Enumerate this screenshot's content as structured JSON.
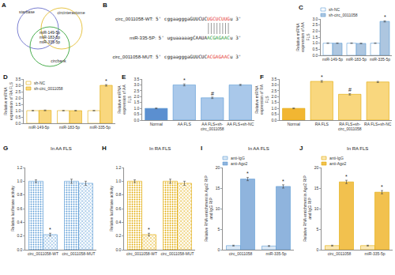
{
  "venn": {
    "panel": "A",
    "sets": [
      {
        "name": "starbase",
        "color": "#7b7fd1"
      },
      {
        "name": "circinteractome",
        "color": "#e8c547"
      },
      {
        "name": "circbank",
        "color": "#4caf50"
      }
    ],
    "intersection": [
      "miR-149-5p",
      "miR-183-5p",
      "miR-335-5p"
    ]
  },
  "alignment": {
    "panel": "B",
    "rows": [
      {
        "label": "circ_0011058-WT:",
        "segments": [
          {
            "text": "5' cggaagggaGUUCUC"
          },
          {
            "text": "UGCUCUUG",
            "color": "#e53935"
          },
          {
            "text": "u 3'"
          }
        ]
      },
      {
        "label": "miR-335-5P:",
        "segments": [
          {
            "text": "5' uguaaaaagCAAUA"
          },
          {
            "text": "ACGAGAAC",
            "color": "#2e9d3a"
          },
          {
            "text": "u 3'"
          }
        ]
      },
      {
        "label": "circ_0011058-MUT:",
        "segments": [
          {
            "text": "5' cggaagggaGUUCUC"
          },
          {
            "text": "ACGAGAAC",
            "color": "#e53935"
          },
          {
            "text": "u 3'"
          }
        ]
      }
    ],
    "pairing": [
      0,
      1
    ]
  },
  "chart_data": [
    {
      "panel": "C",
      "type": "bar",
      "y_label": "Relative miRNA expression of AA FLS",
      "categories": [
        "miR-149-5p",
        "miR-183-5p",
        "miR-335-5p"
      ],
      "color": "#5b9bd5",
      "series": [
        {
          "name": "sh-NC",
          "color": "#ffffff",
          "values": [
            1.0,
            1.0,
            1.0
          ],
          "errors": [
            0.02,
            0.02,
            0.02
          ]
        },
        {
          "name": "sh-circ_0011058",
          "color": "#adc6e0",
          "values": [
            1.0,
            0.98,
            2.8
          ],
          "errors": [
            0.02,
            0.02,
            0.05
          ]
        }
      ],
      "ylim": [
        0,
        3.0
      ],
      "yticks": [
        {
          "value": 0,
          "label": "0.0"
        },
        {
          "value": 0.5,
          "label": "0.5"
        },
        {
          "value": 1,
          "label": "1.0"
        },
        {
          "value": 1.5,
          "label": "1.5"
        },
        {
          "value": 2,
          "label": "2.0"
        },
        {
          "value": 2.5,
          "label": "2.5"
        },
        {
          "value": 3,
          "label": "3.0"
        }
      ],
      "legend": "top",
      "annotations": [
        {
          "category": 2,
          "series": 1,
          "text": "*"
        }
      ]
    },
    {
      "panel": "D",
      "type": "bar",
      "y_label": "Relative miRNA expression of RA FLS",
      "categories": [
        "miR-149-5p",
        "miR-183-5p",
        "miR-335-5p"
      ],
      "color": "#e0a800",
      "series": [
        {
          "name": "sh-NC",
          "color": "#ffffff",
          "values": [
            1.0,
            1.0,
            1.0
          ],
          "errors": [
            0.02,
            0.02,
            0.02
          ]
        },
        {
          "name": "sh-circ_0011058",
          "color": "#f9d77e",
          "values": [
            1.02,
            1.0,
            3.0
          ],
          "errors": [
            0.03,
            0.02,
            0.06
          ]
        }
      ],
      "ylim": [
        0,
        3.5
      ],
      "yticks": [
        {
          "value": 0,
          "label": "0.0"
        },
        {
          "value": 0.5,
          "label": "0.5"
        },
        {
          "value": 1,
          "label": "1.0"
        },
        {
          "value": 1.5,
          "label": "1.5"
        },
        {
          "value": 2,
          "label": "2.0"
        },
        {
          "value": 2.5,
          "label": "2.5"
        },
        {
          "value": 3,
          "label": "3.0"
        },
        {
          "value": 3.5,
          "label": "3.5"
        }
      ],
      "legend": "top left",
      "annotations": [
        {
          "category": 2,
          "series": 1,
          "text": "*"
        }
      ]
    },
    {
      "panel": "E",
      "type": "bar",
      "y_label": "Relative miRNA expression of AA FLS",
      "categories": [
        "Normal",
        "AA FLS",
        "AA FLS+sh-circ_0011058",
        "AA FLS+sh-NC"
      ],
      "color": "#5b9bd5",
      "values": [
        1.0,
        3.0,
        1.9,
        3.0
      ],
      "errors": [
        0.03,
        0.08,
        0.06,
        0.05
      ],
      "colors": [
        "#5b8fd0",
        "#a9c8ea",
        "#a9c8ea",
        "#a9c8ea"
      ],
      "ylim": [
        0,
        3.5
      ],
      "yticks": [
        {
          "value": 0,
          "label": "0.0"
        },
        {
          "value": 0.5,
          "label": "0.5"
        },
        {
          "value": 1,
          "label": "1.0"
        },
        {
          "value": 1.5,
          "label": "1.5"
        },
        {
          "value": 2,
          "label": "2.0"
        },
        {
          "value": 2.5,
          "label": "2.5"
        },
        {
          "value": 3,
          "label": "3.0"
        },
        {
          "value": 3.5,
          "label": "3.5"
        }
      ],
      "annotations": [
        {
          "category": 1,
          "text": "*"
        },
        {
          "category": 2,
          "text": "#"
        }
      ]
    },
    {
      "panel": "F",
      "type": "bar",
      "y_label": "Relative miRNA expression of RA FLS",
      "categories": [
        "Normal",
        "RA FLS",
        "RA FLS+sh-circ_0011058",
        "RA FLS+sh-NC"
      ],
      "color": "#e0a800",
      "values": [
        1.0,
        3.3,
        2.2,
        3.25
      ],
      "errors": [
        0.03,
        0.07,
        0.06,
        0.05
      ],
      "colors": [
        "#f2b632",
        "#f9d77e",
        "#f9d77e",
        "#f9d77e"
      ],
      "ylim": [
        0,
        3.5
      ],
      "yticks": [
        {
          "value": 0,
          "label": "0.0"
        },
        {
          "value": 0.5,
          "label": "0.5"
        },
        {
          "value": 1,
          "label": "1.0"
        },
        {
          "value": 1.5,
          "label": "1.5"
        },
        {
          "value": 2,
          "label": "2.0"
        },
        {
          "value": 2.5,
          "label": "2.5"
        },
        {
          "value": 3,
          "label": "3.0"
        },
        {
          "value": 3.5,
          "label": "3.5"
        }
      ],
      "annotations": [
        {
          "category": 1,
          "text": "*"
        },
        {
          "category": 2,
          "text": "#"
        }
      ]
    },
    {
      "panel": "G",
      "type": "bar",
      "title": "In AA FLS",
      "y_label": "Relative luciferase activity",
      "categories": [
        "circ_0011058-WT",
        "circ_0011058-MUT"
      ],
      "color": "#5b9bd5",
      "series": [
        {
          "color": "#bdd7ee",
          "marker": "dots",
          "values": [
            1.0,
            1.0
          ],
          "errors": [
            0.02,
            0.03
          ]
        },
        {
          "color": "#8fb4dd",
          "marker": "crosshatch",
          "values": [
            0.22,
            0.97
          ],
          "errors": [
            0.02,
            0.03
          ]
        }
      ],
      "ylim": [
        0,
        1.2
      ],
      "yticks": [
        {
          "value": 0,
          "label": "0.0"
        },
        {
          "value": 0.2,
          "label": "0.2"
        },
        {
          "value": 0.4,
          "label": "0.4"
        },
        {
          "value": 0.6,
          "label": "0.6"
        },
        {
          "value": 0.8,
          "label": "0.8"
        },
        {
          "value": 1,
          "label": "1.0"
        },
        {
          "value": 1.2,
          "label": "1.2"
        }
      ],
      "annotations": [
        {
          "category": 0,
          "series": 1,
          "text": "*"
        }
      ]
    },
    {
      "panel": "H",
      "type": "bar",
      "title": "In RA FLS",
      "y_label": "Relative luciferase activity",
      "categories": [
        "circ_0011058-WT",
        "circ_0011058-MUT"
      ],
      "color": "#e0a800",
      "series": [
        {
          "color": "#fbe3a0",
          "marker": "dots",
          "values": [
            1.0,
            1.0
          ],
          "errors": [
            0.02,
            0.03
          ]
        },
        {
          "color": "#f2c14e",
          "marker": "crosshatch",
          "values": [
            0.22,
            0.97
          ],
          "errors": [
            0.02,
            0.03
          ]
        }
      ],
      "ylim": [
        0,
        1.2
      ],
      "yticks": [
        {
          "value": 0,
          "label": "0.0"
        },
        {
          "value": 0.2,
          "label": "0.2"
        },
        {
          "value": 0.4,
          "label": "0.4"
        },
        {
          "value": 0.6,
          "label": "0.6"
        },
        {
          "value": 0.8,
          "label": "0.8"
        },
        {
          "value": 1,
          "label": "1.0"
        },
        {
          "value": 1.2,
          "label": "1.2"
        }
      ],
      "annotations": [
        {
          "category": 0,
          "series": 1,
          "text": "*"
        }
      ]
    },
    {
      "panel": "I",
      "type": "bar",
      "title": "In AA FLS",
      "y_label": "Relative RNA enrichment in Ago2 RIP and IgG RIP",
      "categories": [
        "circ_0011058",
        "miR-335-5p"
      ],
      "color": "#5b9bd5",
      "series": [
        {
          "name": "anti-IgG",
          "color": "#dbe8f5",
          "values": [
            1.0,
            0.9
          ],
          "errors": [
            0.1,
            0.1
          ]
        },
        {
          "name": "anti-Ago2",
          "color": "#8fb4dd",
          "values": [
            17.2,
            15.4
          ],
          "errors": [
            0.4,
            0.4
          ]
        }
      ],
      "ylim": [
        0,
        20
      ],
      "yticks": [
        0,
        5,
        10,
        15,
        20
      ],
      "legend": "top",
      "annotations": [
        {
          "category": 0,
          "series": 1,
          "text": "*"
        },
        {
          "category": 1,
          "series": 1,
          "text": "*"
        }
      ]
    },
    {
      "panel": "J",
      "type": "bar",
      "title": "In RA FLS",
      "y_label": "Relative RNA enrichment in Ago2 RIP and IgG RIP",
      "categories": [
        "circ_0011058",
        "miR-335-5p"
      ],
      "color": "#e0a800",
      "series": [
        {
          "name": "anti-IgG",
          "color": "#fbe8b5",
          "values": [
            1.0,
            1.0
          ],
          "errors": [
            0.1,
            0.1
          ]
        },
        {
          "name": "anti-Ago2",
          "color": "#f2c14e",
          "values": [
            16.5,
            14.0
          ],
          "errors": [
            0.4,
            0.4
          ]
        }
      ],
      "ylim": [
        0,
        20
      ],
      "yticks": [
        0,
        5,
        10,
        15,
        20
      ],
      "legend": "top",
      "annotations": [
        {
          "category": 0,
          "series": 1,
          "text": "*"
        },
        {
          "category": 1,
          "series": 1,
          "text": "*"
        }
      ]
    }
  ]
}
